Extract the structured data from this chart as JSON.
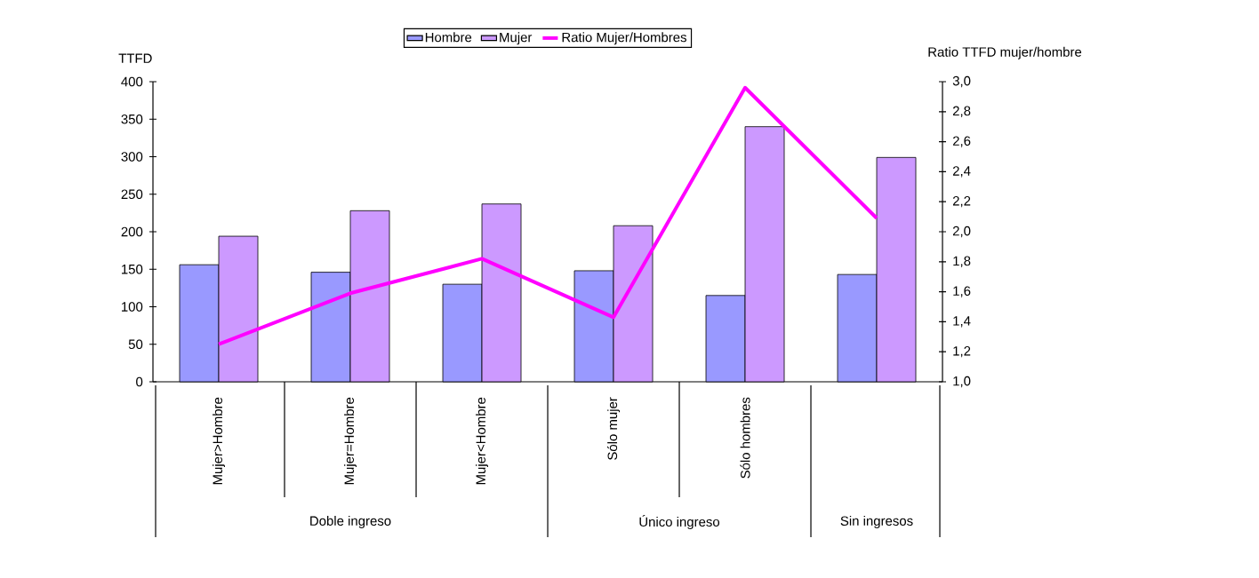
{
  "chart_data": {
    "type": "bar",
    "categories": [
      "Mujer>Hombre",
      "Mujer=Hombre",
      "Mujer<Hombre",
      "Sólo mujer",
      "Sólo hombres",
      null
    ],
    "series": [
      {
        "name": "Hombre",
        "color": "#9999ff",
        "values": [
          156,
          146,
          130,
          148,
          115,
          143
        ]
      },
      {
        "name": "Mujer",
        "color": "#cc99ff",
        "values": [
          194,
          228,
          237,
          208,
          340,
          299
        ]
      },
      {
        "name": "Ratio Mujer/Hombres",
        "type": "line",
        "axis": "y2",
        "color": "#ff00ff",
        "values": [
          1.25,
          1.59,
          1.82,
          1.43,
          2.96,
          2.09
        ]
      }
    ],
    "ylabel": "TTFD",
    "y2label": "Ratio TTFD mujer/hombre",
    "ylim": [
      0,
      400
    ],
    "yticks": [
      0,
      50,
      100,
      150,
      200,
      250,
      300,
      350,
      400
    ],
    "y2lim": [
      1.0,
      3.0
    ],
    "y2ticks": [
      {
        "value": 1.0,
        "label": "1,0"
      },
      {
        "value": 1.2,
        "label": "1,2"
      },
      {
        "value": 1.4,
        "label": "1,4"
      },
      {
        "value": 1.6,
        "label": "1,6"
      },
      {
        "value": 1.8,
        "label": "1,8"
      },
      {
        "value": 2.0,
        "label": "2,0"
      },
      {
        "value": 2.2,
        "label": "2,2"
      },
      {
        "value": 2.4,
        "label": "2,4"
      },
      {
        "value": 2.6,
        "label": "2,6"
      },
      {
        "value": 2.8,
        "label": "2,8"
      },
      {
        "value": 3.0,
        "label": "3,0"
      }
    ],
    "annotations": [
      "Doble ingreso",
      "Único ingreso",
      "Sin ingresos"
    ],
    "legend": "top",
    "grid": false
  }
}
